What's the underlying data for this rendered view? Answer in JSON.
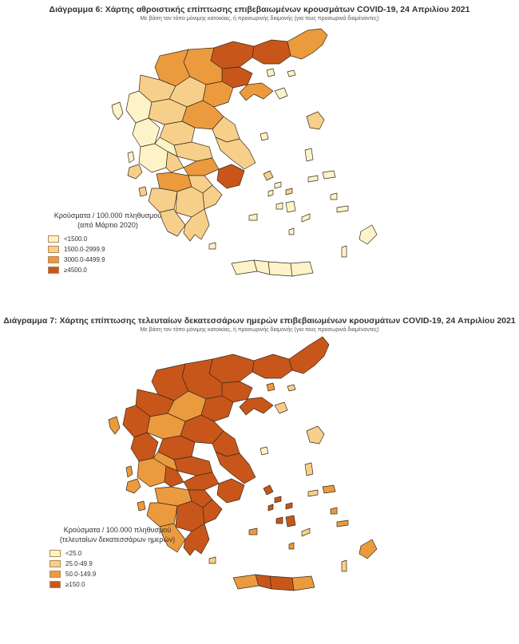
{
  "maps": [
    {
      "title": "Διάγραμμα 6: Χάρτης αθροιστικής επίπτωσης επιβεβαιωμένων κρουσμάτων COVID-19, 24 Απριλίου 2021",
      "subtitle": "Με βάση τον τόπο μόνιμης κατοικίας, ή προσωρινής διαμονής (για τους προσωρινά διαμένοντες)",
      "legend_title_line1": "Κρούσματα / 100.000 πληθυσμού",
      "legend_title_line2": "(από Μάρτιο 2020)",
      "legend_items": [
        {
          "label": "<1500.0",
          "color": "#fdf3c8"
        },
        {
          "label": "1500.0-2999.9",
          "color": "#f6d08a"
        },
        {
          "label": "3000.0-4499.9",
          "color": "#eb9a3e"
        },
        {
          "label": "≥4500.0",
          "color": "#c8561a"
        }
      ]
    },
    {
      "title": "Διάγραμμα 7: Χάρτης επίπτωσης τελευταίων δεκατεσσάρων ημερών επιβεβαιωμένων κρουσμάτων COVID-19, 24 Απριλίου 2021",
      "subtitle": "Με βάση τον τόπο μόνιμης κατοικίας, ή προσωρινής διαμονής (για τους προσωρινά διαμένοντες)",
      "legend_title_line1": "Κρούσματα / 100.000 πληθυσμού",
      "legend_title_line2": "(τελευταίων δεκατεσσάρων ημερών)",
      "legend_items": [
        {
          "label": "<25.0",
          "color": "#fdf3c8"
        },
        {
          "label": "25.0-49.9",
          "color": "#f6d08a"
        },
        {
          "label": "50.0-149.9",
          "color": "#eb9a3e"
        },
        {
          "label": "≥150.0",
          "color": "#c8561a"
        }
      ]
    }
  ]
}
